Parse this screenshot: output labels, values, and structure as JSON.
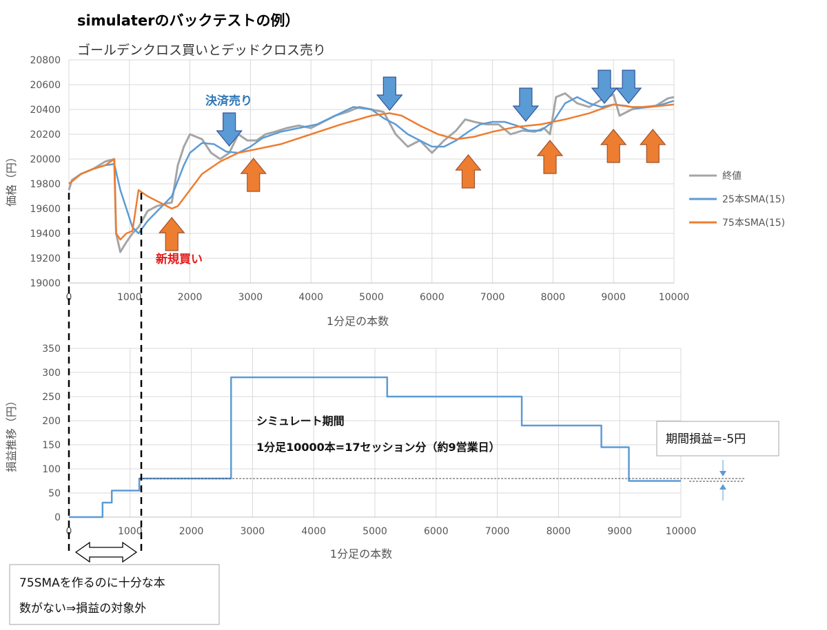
{
  "title": "simulaterのバックテストの例）",
  "subtitle": "ゴールデンクロス買いとデッドクロス売り",
  "colors": {
    "close": "#a5a5a5",
    "sma25": "#5b9bd5",
    "sma75": "#ed7d31",
    "pnl": "#5b9bd5",
    "grid": "#d9d9d9",
    "arrow_up": "#ed7d31",
    "arrow_down": "#5b9bd5"
  },
  "chart_data": [
    {
      "type": "line",
      "xlabel": "1分足の本数",
      "ylabel": "価格（円）",
      "xlim": [
        0,
        10000
      ],
      "ylim": [
        19000,
        20800
      ],
      "xticks": [
        0,
        1000,
        2000,
        3000,
        4000,
        5000,
        6000,
        7000,
        8000,
        9000,
        10000
      ],
      "yticks": [
        19000,
        19200,
        19400,
        19600,
        19800,
        20000,
        20200,
        20400,
        20600,
        20800
      ],
      "grid": true,
      "legend_position": "right",
      "series": [
        {
          "name": "終値",
          "x": [
            0,
            50,
            200,
            400,
            600,
            750,
            780,
            850,
            950,
            1050,
            1150,
            1300,
            1450,
            1600,
            1700,
            1800,
            1900,
            2000,
            2100,
            2200,
            2350,
            2500,
            2650,
            2800,
            2950,
            3100,
            3250,
            3400,
            3600,
            3800,
            4000,
            4200,
            4400,
            4600,
            4800,
            5000,
            5200,
            5400,
            5600,
            5800,
            6000,
            6200,
            6400,
            6550,
            6700,
            6900,
            7100,
            7300,
            7500,
            7700,
            7850,
            7950,
            8050,
            8200,
            8400,
            8600,
            8800,
            9000,
            9100,
            9300,
            9500,
            9700,
            9900,
            10000
          ],
          "y": [
            19750,
            19830,
            19880,
            19920,
            19980,
            20000,
            19400,
            19250,
            19330,
            19400,
            19450,
            19580,
            19620,
            19640,
            19650,
            19950,
            20100,
            20200,
            20180,
            20160,
            20050,
            20000,
            20050,
            20200,
            20150,
            20150,
            20200,
            20220,
            20250,
            20270,
            20250,
            20300,
            20350,
            20380,
            20420,
            20400,
            20380,
            20200,
            20100,
            20150,
            20050,
            20150,
            20230,
            20320,
            20300,
            20280,
            20280,
            20200,
            20230,
            20220,
            20250,
            20200,
            20500,
            20530,
            20450,
            20420,
            20480,
            20520,
            20350,
            20400,
            20420,
            20430,
            20490,
            20500
          ]
        },
        {
          "name": "25本SMA(15)",
          "x": [
            0,
            200,
            400,
            600,
            750,
            850,
            950,
            1050,
            1150,
            1300,
            1500,
            1700,
            1900,
            2000,
            2200,
            2400,
            2600,
            2800,
            3000,
            3200,
            3500,
            3800,
            4100,
            4400,
            4700,
            5000,
            5200,
            5400,
            5600,
            5800,
            6000,
            6200,
            6400,
            6600,
            6800,
            7000,
            7200,
            7400,
            7600,
            7800,
            8000,
            8200,
            8400,
            8600,
            8800,
            9000,
            9200,
            9400,
            9600,
            9800,
            10000
          ],
          "y": [
            19800,
            19880,
            19920,
            19950,
            19960,
            19750,
            19600,
            19450,
            19400,
            19500,
            19600,
            19700,
            19950,
            20050,
            20130,
            20120,
            20060,
            20050,
            20100,
            20170,
            20220,
            20250,
            20280,
            20350,
            20420,
            20400,
            20330,
            20280,
            20200,
            20150,
            20100,
            20100,
            20150,
            20220,
            20280,
            20300,
            20300,
            20270,
            20230,
            20230,
            20300,
            20450,
            20500,
            20450,
            20420,
            20440,
            20430,
            20410,
            20420,
            20440,
            20470
          ]
        },
        {
          "name": "75本SMA(15)",
          "x": [
            0,
            200,
            400,
            600,
            750,
            780,
            850,
            950,
            1050,
            1150,
            1300,
            1500,
            1700,
            1800,
            2000,
            2200,
            2500,
            2800,
            3100,
            3500,
            4000,
            4500,
            5000,
            5300,
            5500,
            5800,
            6100,
            6400,
            6700,
            7000,
            7400,
            7800,
            8200,
            8600,
            9000,
            9300,
            9600,
            10000
          ],
          "y": [
            19800,
            19880,
            19920,
            19950,
            20000,
            19400,
            19350,
            19400,
            19420,
            19750,
            19700,
            19650,
            19600,
            19620,
            19750,
            19880,
            19980,
            20050,
            20080,
            20120,
            20200,
            20280,
            20350,
            20370,
            20350,
            20270,
            20200,
            20160,
            20180,
            20220,
            20260,
            20280,
            20320,
            20370,
            20440,
            20420,
            20420,
            20440
          ]
        }
      ],
      "annotations": {
        "sell_label": "決済売り",
        "buy_label": "新規買い",
        "sell_arrows_x": [
          2650,
          5300,
          7550,
          8850,
          9250
        ],
        "buy_arrows_x": [
          1700,
          3050,
          6600,
          7950,
          9000,
          9650
        ]
      }
    },
    {
      "type": "line",
      "xlabel": "1分足の本数",
      "ylabel": "損益推移（円）",
      "xlim": [
        0,
        10000
      ],
      "ylim": [
        0,
        350
      ],
      "xticks": [
        0,
        1000,
        2000,
        3000,
        4000,
        5000,
        6000,
        7000,
        8000,
        9000,
        10000
      ],
      "yticks": [
        0,
        50,
        100,
        150,
        200,
        250,
        300,
        350
      ],
      "grid": true,
      "series": [
        {
          "x": [
            0,
            550,
            550,
            700,
            700,
            1150,
            1150,
            2650,
            2650,
            5200,
            5200,
            7400,
            7400,
            8700,
            8700,
            9150,
            9150,
            10000
          ],
          "y": [
            0,
            0,
            30,
            30,
            55,
            55,
            80,
            80,
            290,
            290,
            250,
            250,
            190,
            190,
            145,
            145,
            75,
            75
          ]
        }
      ],
      "reference_line_y": 80,
      "annotations": {
        "period_title": "シミュレート期間",
        "period_detail": "1分足10000本=17セッション分（約9営業日）",
        "pnl_box": "期間損益=-5円"
      }
    }
  ],
  "note_box": {
    "line1": "75SMAを作るのに十分な本",
    "line2": "数がない⇒損益の対象外"
  }
}
